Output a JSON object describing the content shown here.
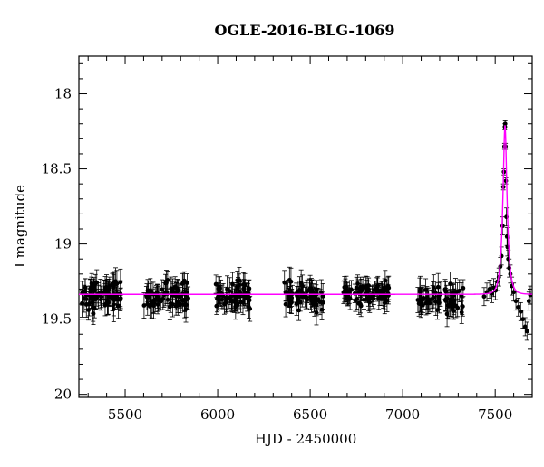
{
  "chart_data": {
    "type": "scatter",
    "title": "OGLE-2016-BLG-1069",
    "xlabel": "HJD - 2450000",
    "ylabel": "I magnitude",
    "xlim": [
      5250,
      7700
    ],
    "ylim": [
      20.02,
      17.75
    ],
    "y_inverted": true,
    "x_ticks": [
      5500,
      6000,
      6500,
      7000,
      7500
    ],
    "x_tick_labels": [
      "5500",
      "6000",
      "6500",
      "7000",
      "7500"
    ],
    "y_ticks": [
      18,
      18.5,
      19,
      19.5,
      20
    ],
    "y_tick_labels": [
      "18",
      "18.5",
      "19",
      "19.5",
      "20"
    ],
    "grid": false,
    "legend": "none",
    "colors": {
      "points": "#000000",
      "model": "#ff00ff"
    },
    "series": [
      {
        "kind": "observations-with-errorbars",
        "seasons": [
          {
            "x_range": [
              5265,
              5480
            ],
            "mean": 19.34,
            "scatter": 0.09,
            "error": 0.07,
            "count": 70
          },
          {
            "x_range": [
              5600,
              5850
            ],
            "mean": 19.35,
            "scatter": 0.09,
            "error": 0.07,
            "count": 70
          },
          {
            "x_range": [
              5990,
              6180
            ],
            "mean": 19.34,
            "scatter": 0.08,
            "error": 0.07,
            "count": 65
          },
          {
            "x_range": [
              6360,
              6570
            ],
            "mean": 19.35,
            "scatter": 0.08,
            "error": 0.07,
            "count": 65
          },
          {
            "x_range": [
              6680,
              6930
            ],
            "mean": 19.33,
            "scatter": 0.07,
            "error": 0.06,
            "count": 75
          },
          {
            "x_range": [
              7080,
              7330
            ],
            "mean": 19.36,
            "scatter": 0.08,
            "error": 0.07,
            "count": 65
          }
        ],
        "event_points": [
          [
            7440,
            19.35
          ],
          [
            7455,
            19.32
          ],
          [
            7470,
            19.3
          ],
          [
            7482,
            19.33
          ],
          [
            7492,
            19.29
          ],
          [
            7502,
            19.31
          ],
          [
            7512,
            19.25
          ],
          [
            7520,
            19.22
          ],
          [
            7528,
            19.15
          ],
          [
            7534,
            19.08
          ],
          [
            7540,
            18.88
          ],
          [
            7544,
            18.62
          ],
          [
            7547,
            18.52
          ],
          [
            7550,
            18.35
          ],
          [
            7552,
            18.22
          ],
          [
            7554,
            18.2
          ],
          [
            7556,
            18.35
          ],
          [
            7558,
            18.58
          ],
          [
            7561,
            18.82
          ],
          [
            7564,
            18.95
          ],
          [
            7567,
            19.02
          ],
          [
            7571,
            19.1
          ],
          [
            7576,
            19.16
          ],
          [
            7582,
            19.2
          ],
          [
            7590,
            19.28
          ],
          [
            7600,
            19.32
          ],
          [
            7612,
            19.38
          ],
          [
            7625,
            19.42
          ],
          [
            7638,
            19.45
          ],
          [
            7650,
            19.5
          ],
          [
            7662,
            19.55
          ],
          [
            7672,
            19.58
          ],
          [
            7682,
            19.38
          ],
          [
            7690,
            19.34
          ]
        ]
      },
      {
        "kind": "model-curve",
        "baseline": 19.335,
        "peak_x": 7553,
        "peak_mag": 18.21,
        "tE": 22
      }
    ]
  }
}
